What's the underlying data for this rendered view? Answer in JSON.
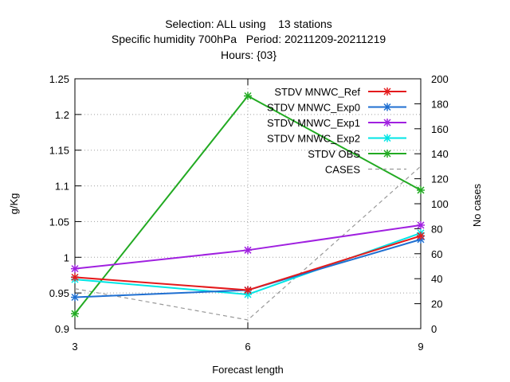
{
  "chart_data": {
    "type": "line",
    "title_lines": [
      "Selection: ALL using    13 stations",
      "Specific humidity 700hPa   Period: 20211209-20211219",
      "Hours: {03}"
    ],
    "xlabel": "Forecast length",
    "ylabel": "g/Kg",
    "y2label": "No cases",
    "x": [
      3,
      6,
      9
    ],
    "xlim": [
      3,
      9
    ],
    "ylim": [
      0.9,
      1.25
    ],
    "y2lim": [
      0,
      200
    ],
    "xticks": [
      "3",
      "6",
      "9"
    ],
    "yticks": [
      "0.9",
      "0.95",
      "1",
      "1.05",
      "1.1",
      "1.15",
      "1.2",
      "1.25"
    ],
    "y2ticks": [
      "0",
      "20",
      "40",
      "60",
      "80",
      "100",
      "120",
      "140",
      "160",
      "180",
      "200"
    ],
    "grid": true,
    "legend_position": "top-right",
    "series": [
      {
        "name": "STDV MNWC_Ref",
        "color": "#e41a1c",
        "axis": "y",
        "values": [
          0.972,
          0.954,
          1.03
        ]
      },
      {
        "name": "STDV MNWC_Exp0",
        "color": "#1f6fd1",
        "axis": "y",
        "values": [
          0.944,
          0.954,
          1.025
        ]
      },
      {
        "name": "STDV MNWC_Exp1",
        "color": "#a020e0",
        "axis": "y",
        "values": [
          0.984,
          1.01,
          1.045
        ]
      },
      {
        "name": "STDV MNWC_Exp2",
        "color": "#00e5e5",
        "axis": "y",
        "values": [
          0.969,
          0.948,
          1.034
        ]
      },
      {
        "name": "STDV OBS",
        "color": "#22aa22",
        "axis": "y",
        "values": [
          0.921,
          1.226,
          1.094
        ]
      },
      {
        "name": "CASES",
        "color": "#999999",
        "axis": "y2",
        "dashed": true,
        "values": [
          32,
          7,
          130
        ]
      }
    ]
  }
}
